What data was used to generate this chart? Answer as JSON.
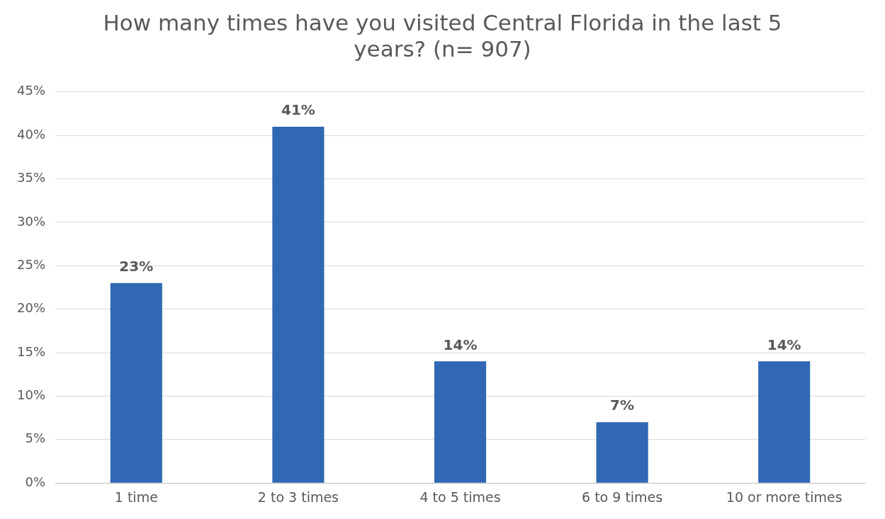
{
  "chart_data": {
    "type": "bar",
    "title": "How many times have you visited Central Florida in the last 5 years? (n= 907)",
    "categories": [
      "1 time",
      "2 to 3 times",
      "4 to 5 times",
      "6 to 9 times",
      "10 or more times"
    ],
    "values": [
      23,
      41,
      14,
      7,
      14
    ],
    "value_labels": [
      "23%",
      "41%",
      "14%",
      "7%",
      "14%"
    ],
    "color": "#3068b3",
    "ylim": [
      0,
      45
    ],
    "yticks": [
      {
        "value": 0,
        "label": "0%"
      },
      {
        "value": 5,
        "label": "5%"
      },
      {
        "value": 10,
        "label": "10%"
      },
      {
        "value": 15,
        "label": "15%"
      },
      {
        "value": 20,
        "label": "20%"
      },
      {
        "value": 25,
        "label": "25%"
      },
      {
        "value": 30,
        "label": "30%"
      },
      {
        "value": 35,
        "label": "35%"
      },
      {
        "value": 40,
        "label": "40%"
      },
      {
        "value": 45,
        "label": "45%"
      }
    ],
    "grid": "y"
  }
}
